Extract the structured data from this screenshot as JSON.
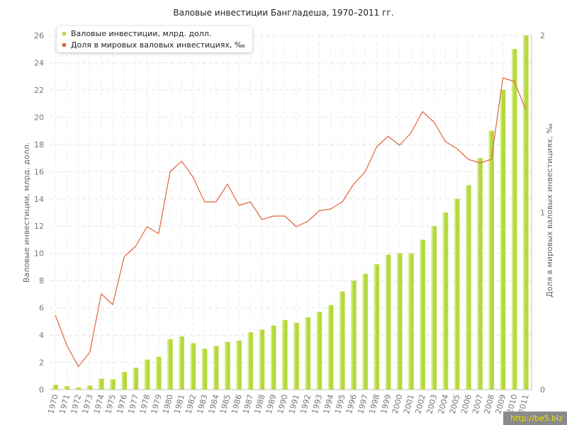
{
  "chart_data": {
    "type": "bar+line",
    "title": "Валовые инвестиции Бангладеша, 1970–2011 гг.",
    "ylabel": "Валовые инвестиции, млрд. долл.",
    "y2label": "Доля в мировых валовых инвестициях, ‰",
    "ylim": [
      0,
      26
    ],
    "y2lim": [
      0,
      2
    ],
    "yticks": [
      "0",
      "2",
      "4",
      "6",
      "8",
      "10",
      "12",
      "14",
      "16",
      "18",
      "20",
      "22",
      "24",
      "26"
    ],
    "y2ticks": [
      "0",
      "1",
      "2"
    ],
    "grid": true,
    "legend_position": "top-left",
    "categories": [
      "1970",
      "1971",
      "1972",
      "1973",
      "1974",
      "1975",
      "1976",
      "1977",
      "1978",
      "1979",
      "1980",
      "1981",
      "1982",
      "1983",
      "1984",
      "1985",
      "1986",
      "1987",
      "1988",
      "1989",
      "1990",
      "1991",
      "1992",
      "1993",
      "1994",
      "1995",
      "1996",
      "1997",
      "1998",
      "1999",
      "2000",
      "2001",
      "2002",
      "2003",
      "2004",
      "2005",
      "2006",
      "2007",
      "2008",
      "2009",
      "2010",
      "2011"
    ],
    "series": [
      {
        "name": "Валовые инвестиции, млрд. долл.",
        "type": "bar",
        "axis": "left",
        "color": "#b5d93d",
        "values": [
          0.35,
          0.25,
          0.15,
          0.3,
          0.8,
          0.75,
          1.3,
          1.6,
          2.2,
          2.4,
          3.7,
          3.9,
          3.4,
          3.0,
          3.2,
          3.5,
          3.6,
          4.2,
          4.4,
          4.7,
          5.1,
          4.9,
          5.3,
          5.7,
          6.2,
          7.2,
          8.0,
          8.5,
          9.2,
          9.9,
          10.0,
          10.0,
          11.0,
          12.0,
          13.0,
          14.0,
          15.0,
          17.0,
          19.0,
          22.0,
          25.0,
          26.0
        ]
      },
      {
        "name": "Доля в мировых валовых инвестициях, ‰",
        "type": "line",
        "axis": "right",
        "color": "#e0653a",
        "values": [
          0.42,
          0.25,
          0.13,
          0.21,
          0.54,
          0.48,
          0.75,
          0.81,
          0.92,
          0.88,
          1.23,
          1.29,
          1.2,
          1.06,
          1.06,
          1.16,
          1.04,
          1.06,
          0.96,
          0.98,
          0.98,
          0.92,
          0.95,
          1.01,
          1.02,
          1.06,
          1.16,
          1.23,
          1.37,
          1.43,
          1.38,
          1.45,
          1.57,
          1.51,
          1.4,
          1.36,
          1.3,
          1.28,
          1.3,
          1.76,
          1.74,
          1.58
        ]
      }
    ]
  },
  "watermark": "http://be5.biz"
}
